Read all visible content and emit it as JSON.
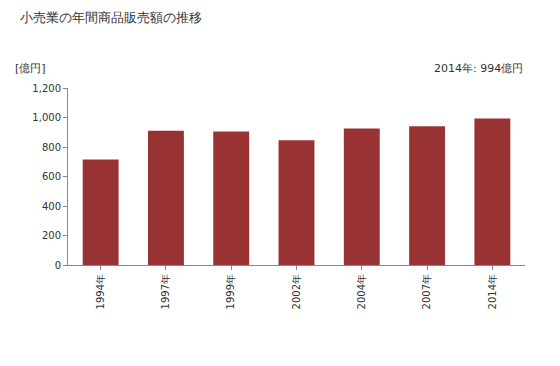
{
  "chart_data": {
    "type": "bar",
    "title": "小売業の年間商品販売額の推移",
    "ylabel": "[億円]",
    "annotation": "2014年: 994億円",
    "categories": [
      "1994年",
      "1997年",
      "1999年",
      "2002年",
      "2004年",
      "2007年",
      "2014年"
    ],
    "values": [
      715,
      910,
      905,
      845,
      925,
      940,
      994
    ],
    "color": "#993333",
    "ylim": [
      0,
      1200
    ],
    "yticks": [
      0,
      200,
      400,
      600,
      800,
      {
        "value": 1000,
        "label": "1,000"
      },
      {
        "value": 1200,
        "label": "1,200"
      }
    ],
    "grid": false
  }
}
